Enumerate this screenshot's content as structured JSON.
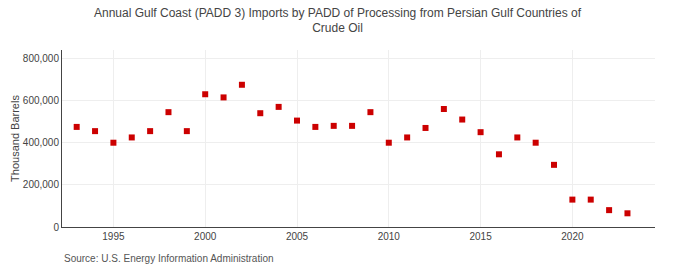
{
  "chart_data": {
    "type": "scatter",
    "title": "Annual Gulf Coast (PADD 3) Imports by PADD of Processing from Persian Gulf Countries of\nCrude Oil",
    "ylabel": "Thousand Barrels",
    "annotations": [
      "Source: U.S. Energy Information Administration"
    ],
    "x": [
      1993,
      1994,
      1995,
      1996,
      1997,
      1998,
      1999,
      2000,
      2001,
      2002,
      2003,
      2004,
      2005,
      2006,
      2007,
      2008,
      2009,
      2010,
      2011,
      2012,
      2013,
      2014,
      2015,
      2016,
      2017,
      2018,
      2019,
      2020,
      2021,
      2022,
      2023
    ],
    "values": [
      475000,
      455000,
      400000,
      425000,
      455000,
      545000,
      455000,
      630000,
      615000,
      675000,
      540000,
      570000,
      505000,
      475000,
      480000,
      480000,
      545000,
      400000,
      425000,
      470000,
      560000,
      510000,
      450000,
      345000,
      425000,
      400000,
      295000,
      130000,
      130000,
      80000,
      65000
    ],
    "color": "#cc0000",
    "marker": "square",
    "xlim": [
      1992.2,
      2024.5
    ],
    "xticks": [
      1995,
      2000,
      2005,
      2010,
      2015,
      2020
    ],
    "ylim": [
      0,
      840000
    ],
    "yticks": [
      0,
      {
        "value": 200000,
        "label": "200,000"
      },
      {
        "value": 400000,
        "label": "400,000"
      },
      {
        "value": 600000,
        "label": "600,000"
      },
      {
        "value": 800000,
        "label": "800,000"
      }
    ],
    "grid": true
  }
}
